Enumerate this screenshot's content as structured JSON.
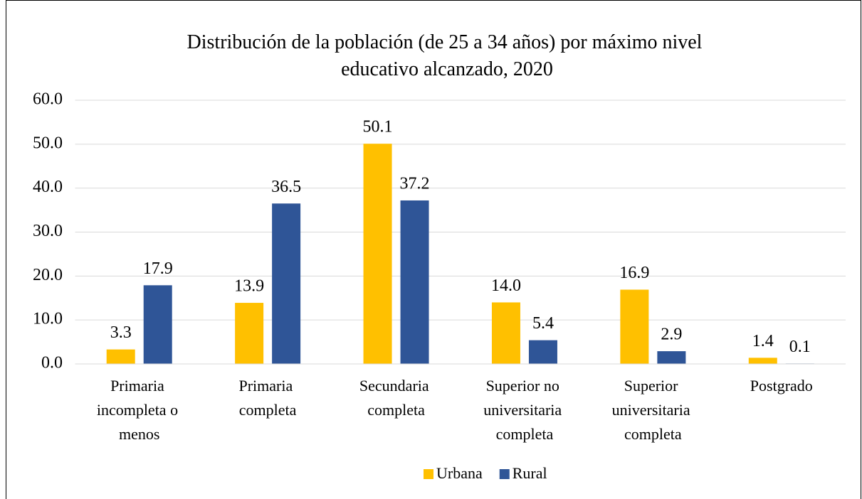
{
  "chart_data": {
    "type": "bar",
    "title": "Distribución de la población (de 25 a 34 años) por máximo nivel educativo alcanzado, 2020",
    "categories": [
      "Primaria incompleta o menos",
      "Primaria completa",
      "Secundaria completa",
      "Superior no universitaria completa",
      "Superior universitaria completa",
      "Postgrado"
    ],
    "series": [
      {
        "name": "Urbana",
        "color": "#FFC000",
        "values": [
          3.3,
          13.9,
          50.1,
          14.0,
          16.9,
          1.4
        ],
        "value_labels": [
          "3.3",
          "13.9",
          "50.1",
          "14.0",
          "16.9",
          "1.4"
        ]
      },
      {
        "name": "Rural",
        "color": "#2F5597",
        "values": [
          17.9,
          36.5,
          37.2,
          5.4,
          2.9,
          0.1
        ],
        "value_labels": [
          "17.9",
          "36.5",
          "37.2",
          "5.4",
          "2.9",
          "0.1"
        ]
      }
    ],
    "ylim": [
      0,
      60
    ],
    "yticks": [
      {
        "value": 0,
        "label": "0.0"
      },
      {
        "value": 10,
        "label": "10.0"
      },
      {
        "value": 20,
        "label": "20.0"
      },
      {
        "value": 30,
        "label": "30.0"
      },
      {
        "value": 40,
        "label": "40.0"
      },
      {
        "value": 50,
        "label": "50.0"
      },
      {
        "value": 60,
        "label": "60.0"
      }
    ],
    "grid": true,
    "legend": "bottom"
  }
}
